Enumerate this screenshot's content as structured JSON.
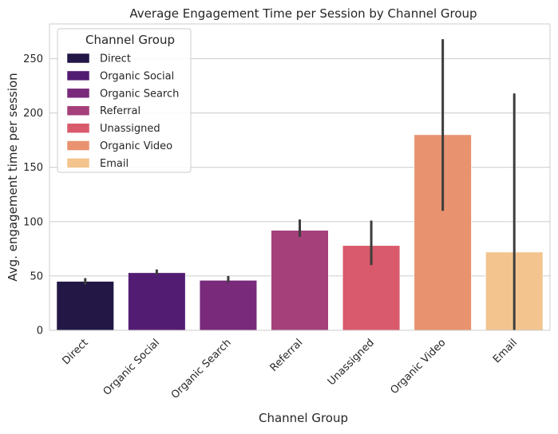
{
  "chart_data": {
    "type": "bar",
    "title": "Average Engagement Time per Session by Channel Group",
    "xlabel": "Channel Group",
    "ylabel": "Avg. engagement time per session",
    "ylim": [
      0,
      282
    ],
    "yticks": [
      0,
      50,
      100,
      150,
      200,
      250
    ],
    "grid": true,
    "legend": {
      "title": "Channel Group",
      "position": "top-left"
    },
    "categories": [
      "Direct",
      "Organic Social",
      "Organic Search",
      "Referral",
      "Unassigned",
      "Organic Video",
      "Email"
    ],
    "values": [
      45,
      53,
      46,
      92,
      78,
      180,
      72
    ],
    "error_low": [
      42,
      51,
      44,
      86,
      60,
      110,
      0
    ],
    "error_high": [
      48,
      56,
      50,
      102,
      101,
      268,
      218
    ],
    "colors": [
      "#221745",
      "#531c73",
      "#792a7a",
      "#a5407a",
      "#d95a6c",
      "#e89270",
      "#f3c48e"
    ]
  }
}
